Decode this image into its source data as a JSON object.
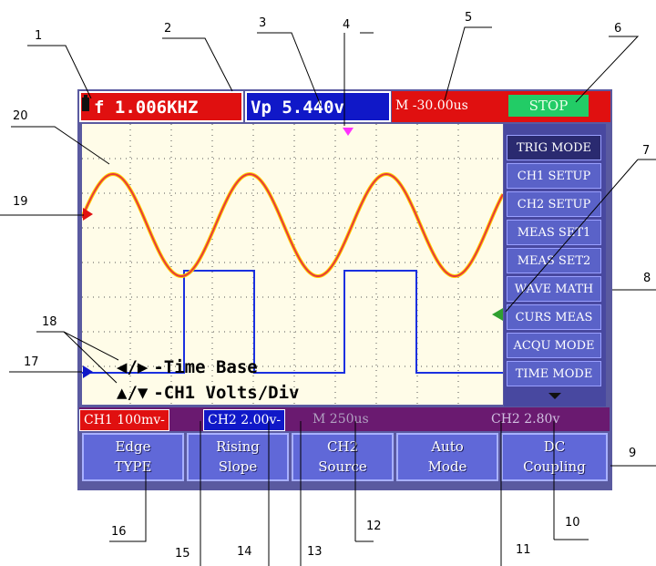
{
  "topbar": {
    "frequency": "f 1.006KHZ",
    "vpp": "Vp 5.440v",
    "time_offset": "M -30.00us",
    "run_state": "STOP"
  },
  "side_menu": {
    "items": [
      {
        "label": "TRIG MODE",
        "active": true
      },
      {
        "label": "CH1 SETUP"
      },
      {
        "label": "CH2 SETUP"
      },
      {
        "label": "MEAS SET1"
      },
      {
        "label": "MEAS SET2"
      },
      {
        "label": "WAVE MATH"
      },
      {
        "label": "CURS MEAS"
      },
      {
        "label": "ACQU MODE"
      },
      {
        "label": "TIME MODE"
      }
    ]
  },
  "help_text": {
    "line1_arrows": "◀/▶",
    "line1": "-Time Base",
    "line2_arrows": "▲/▼",
    "line2": "-CH1 Volts/Div"
  },
  "status_bar": {
    "ch1_scale": "CH1 100mv-",
    "ch2_scale": "CH2 2.00v-",
    "timebase": "M 250us",
    "ch2_trigger": "CH2 2.80v"
  },
  "softkeys": [
    {
      "top": "Edge",
      "bottom": "TYPE"
    },
    {
      "top": "Rising",
      "bottom": "Slope"
    },
    {
      "top": "CH2",
      "bottom": "Source"
    },
    {
      "top": "Auto",
      "bottom": "Mode"
    },
    {
      "top": "DC",
      "bottom": "Coupling"
    }
  ],
  "callouts": [
    "1",
    "2",
    "3",
    "4",
    "5",
    "6",
    "7",
    "8",
    "9",
    "10",
    "11",
    "12",
    "13",
    "14",
    "15",
    "16",
    "17",
    "18",
    "19",
    "20"
  ],
  "colors": {
    "ch1_wave": "#e83a3a",
    "ch1_wave_glow": "#ffd000",
    "ch2_wave": "#1a30e0",
    "trigger_marker": "#ff30ff",
    "ch2_marker": "#30a030"
  },
  "icons": [
    "battery-icon",
    "ch1-level-marker-icon",
    "ch2-level-marker-icon",
    "trigger-position-icon",
    "menu-more-icon"
  ]
}
